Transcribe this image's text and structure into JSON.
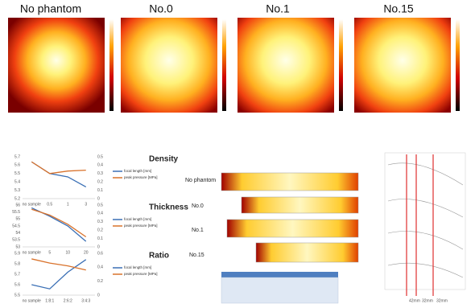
{
  "heatmaps": {
    "titles": [
      "No phantom",
      "No.0",
      "No.1",
      "No.15"
    ]
  },
  "profiles": {
    "labels": [
      "No phantom",
      "No.0",
      "No.1",
      "No.15"
    ]
  },
  "beam_plot": {
    "labels": [
      "42mm",
      "32mm",
      "32mm"
    ]
  },
  "chart_data": [
    {
      "type": "line",
      "title": "Density",
      "categories": [
        "no sample",
        "0.5",
        "1",
        "3"
      ],
      "ylim": [
        5.2,
        5.7
      ],
      "yticks": [
        5.2,
        5.3,
        5.4,
        5.5,
        5.6,
        5.7
      ],
      "y2lim": [
        0,
        0.5
      ],
      "y2ticks": [
        0,
        0.1,
        0.2,
        0.3,
        0.4,
        0.5
      ],
      "series": [
        {
          "name": "focal length [mm]",
          "color": "#3a6fb5",
          "values": [
            5.64,
            5.5,
            5.46,
            5.34
          ]
        },
        {
          "name": "peak pressure [MPa]",
          "color": "#d9722b",
          "axis": "y2",
          "values": [
            0.44,
            0.3,
            0.33,
            0.34
          ]
        }
      ]
    },
    {
      "type": "line",
      "title": "Thickness",
      "categories": [
        "no sample",
        "5",
        "10",
        "20"
      ],
      "ylim": [
        53,
        56
      ],
      "yticks": [
        53,
        53.5,
        54,
        54.5,
        55,
        55.5,
        56
      ],
      "y2lim": [
        0,
        0.5
      ],
      "y2ticks": [
        0,
        0.1,
        0.2,
        0.3,
        0.4,
        0.5
      ],
      "series": [
        {
          "name": "focal length [mm]",
          "color": "#3a6fb5",
          "values": [
            55.8,
            55.2,
            54.5,
            53.4
          ]
        },
        {
          "name": "peak pressure [MPa]",
          "color": "#d9722b",
          "axis": "y2",
          "values": [
            0.45,
            0.38,
            0.27,
            0.12
          ]
        }
      ]
    },
    {
      "type": "line",
      "title": "Ratio",
      "categories": [
        "no sample",
        "1:8:1",
        "2:6:2",
        "3:4:3"
      ],
      "ylim": [
        5.5,
        5.9
      ],
      "yticks": [
        5.5,
        5.6,
        5.7,
        5.8,
        5.9
      ],
      "y2lim": [
        0,
        0.6
      ],
      "y2ticks": [
        0,
        0.2,
        0.4,
        0.6
      ],
      "series": [
        {
          "name": "focal length [mm]",
          "color": "#3a6fb5",
          "values": [
            5.6,
            5.56,
            5.72,
            5.84
          ]
        },
        {
          "name": "peak pressure [MPa]",
          "color": "#d9722b",
          "axis": "y2",
          "values": [
            0.52,
            0.46,
            0.42,
            0.36
          ]
        }
      ]
    }
  ]
}
